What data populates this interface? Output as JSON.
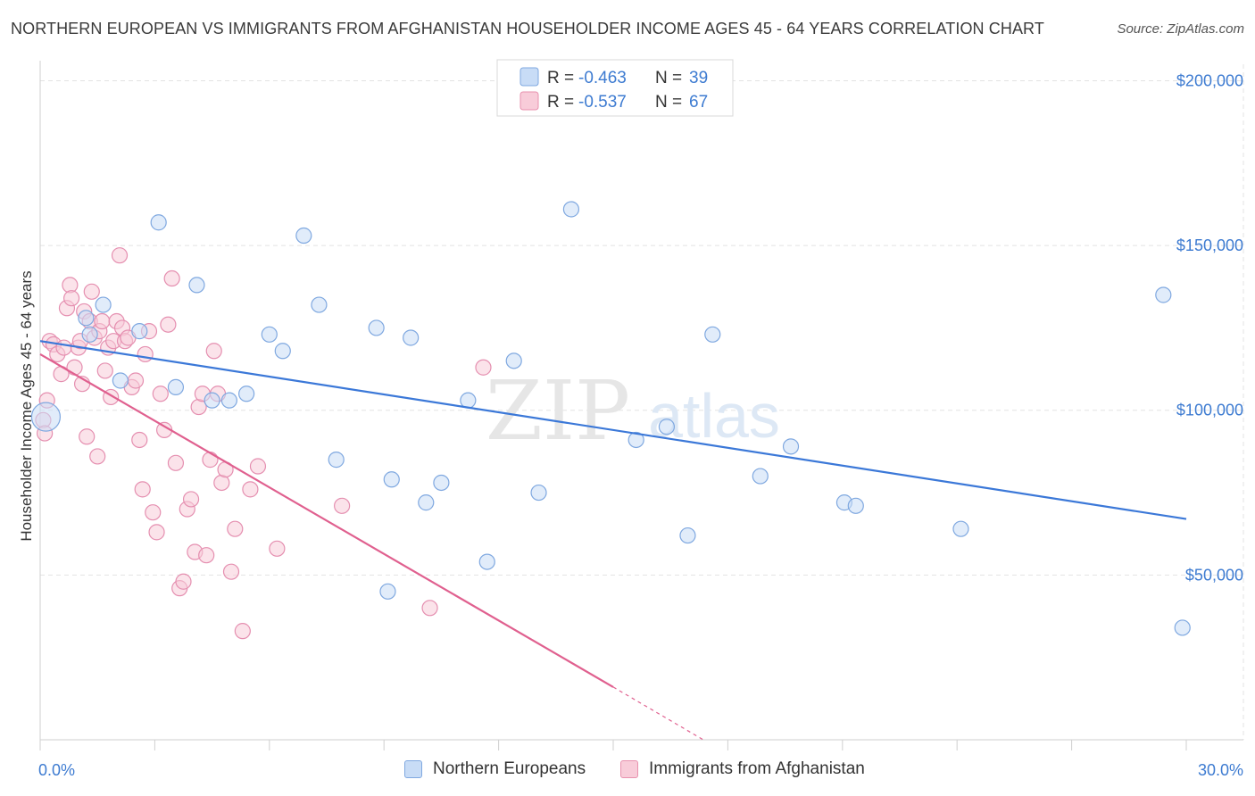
{
  "title": "NORTHERN EUROPEAN VS IMMIGRANTS FROM AFGHANISTAN HOUSEHOLDER INCOME AGES 45 - 64 YEARS CORRELATION CHART",
  "source": "Source: ZipAtlas.com",
  "watermark": {
    "zip": "ZIP",
    "atlas": "atlas"
  },
  "colors": {
    "blue": "#3b78d8",
    "blue_fill": "#c8dcf6",
    "pink": "#e0608f",
    "pink_fill": "#f8ccd9",
    "tick_text": "#3d7bd1",
    "grid": "#e3e3e3"
  },
  "legend": {
    "rows": [
      {
        "r_label": "R = ",
        "r_value": "-0.463",
        "n_label": "N = ",
        "n_value": "39"
      },
      {
        "r_label": "R = ",
        "r_value": "-0.537",
        "n_label": "N = ",
        "n_value": "67"
      }
    ]
  },
  "chart_data": {
    "type": "scatter",
    "title": "NORTHERN EUROPEAN VS IMMIGRANTS FROM AFGHANISTAN HOUSEHOLDER INCOME AGES 45 - 64 YEARS CORRELATION CHART",
    "xlabel": "",
    "ylabel": "Householder Income Ages 45 - 64 years",
    "xlim": [
      0,
      30
    ],
    "ylim": [
      0,
      205000
    ],
    "x_tick_labels": [
      "0.0%",
      "30.0%"
    ],
    "y_ticks": [
      50000,
      100000,
      150000,
      200000
    ],
    "y_tick_labels": [
      "$50,000",
      "$100,000",
      "$150,000",
      "$200,000"
    ],
    "grid": true,
    "legend_position": "top-center",
    "series": [
      {
        "name": "Northern Europeans",
        "color": "#3b78d8",
        "points": [
          [
            0.15,
            98000
          ],
          [
            1.2,
            128000
          ],
          [
            1.3,
            123000
          ],
          [
            1.65,
            132000
          ],
          [
            2.1,
            109000
          ],
          [
            2.6,
            124000
          ],
          [
            3.1,
            157000
          ],
          [
            3.55,
            107000
          ],
          [
            4.1,
            138000
          ],
          [
            4.5,
            103000
          ],
          [
            4.95,
            103000
          ],
          [
            5.4,
            105000
          ],
          [
            6.0,
            123000
          ],
          [
            6.35,
            118000
          ],
          [
            6.9,
            153000
          ],
          [
            7.3,
            132000
          ],
          [
            7.75,
            85000
          ],
          [
            8.8,
            125000
          ],
          [
            9.1,
            45000
          ],
          [
            9.2,
            79000
          ],
          [
            9.7,
            122000
          ],
          [
            10.1,
            72000
          ],
          [
            10.5,
            78000
          ],
          [
            11.2,
            103000
          ],
          [
            11.7,
            54000
          ],
          [
            12.4,
            115000
          ],
          [
            13.05,
            75000
          ],
          [
            13.9,
            161000
          ],
          [
            15.6,
            91000
          ],
          [
            16.4,
            95000
          ],
          [
            16.95,
            62000
          ],
          [
            17.6,
            123000
          ],
          [
            18.85,
            80000
          ],
          [
            19.65,
            89000
          ],
          [
            21.05,
            72000
          ],
          [
            21.35,
            71000
          ],
          [
            24.1,
            64000
          ],
          [
            29.4,
            135000
          ],
          [
            29.9,
            34000
          ]
        ],
        "trend": {
          "x": [
            0,
            30
          ],
          "y": [
            121000,
            67000
          ]
        }
      },
      {
        "name": "Immigrants from Afghanistan",
        "color": "#e0608f",
        "points": [
          [
            0.08,
            97000
          ],
          [
            0.12,
            93000
          ],
          [
            0.18,
            103000
          ],
          [
            0.25,
            121000
          ],
          [
            0.35,
            120000
          ],
          [
            0.45,
            117000
          ],
          [
            0.55,
            111000
          ],
          [
            0.62,
            119000
          ],
          [
            0.7,
            131000
          ],
          [
            0.78,
            138000
          ],
          [
            0.82,
            134000
          ],
          [
            0.9,
            113000
          ],
          [
            1.0,
            119000
          ],
          [
            1.05,
            121000
          ],
          [
            1.1,
            108000
          ],
          [
            1.15,
            130000
          ],
          [
            1.22,
            92000
          ],
          [
            1.3,
            127000
          ],
          [
            1.35,
            136000
          ],
          [
            1.42,
            122000
          ],
          [
            1.5,
            86000
          ],
          [
            1.55,
            124000
          ],
          [
            1.62,
            127000
          ],
          [
            1.7,
            112000
          ],
          [
            1.78,
            119000
          ],
          [
            1.85,
            104000
          ],
          [
            1.92,
            121000
          ],
          [
            2.0,
            127000
          ],
          [
            2.08,
            147000
          ],
          [
            2.15,
            125000
          ],
          [
            2.22,
            121000
          ],
          [
            2.3,
            122000
          ],
          [
            2.4,
            107000
          ],
          [
            2.5,
            109000
          ],
          [
            2.6,
            91000
          ],
          [
            2.68,
            76000
          ],
          [
            2.75,
            117000
          ],
          [
            2.85,
            124000
          ],
          [
            2.95,
            69000
          ],
          [
            3.05,
            63000
          ],
          [
            3.15,
            105000
          ],
          [
            3.25,
            94000
          ],
          [
            3.35,
            126000
          ],
          [
            3.45,
            140000
          ],
          [
            3.55,
            84000
          ],
          [
            3.65,
            46000
          ],
          [
            3.75,
            48000
          ],
          [
            3.85,
            70000
          ],
          [
            3.95,
            73000
          ],
          [
            4.05,
            57000
          ],
          [
            4.15,
            101000
          ],
          [
            4.25,
            105000
          ],
          [
            4.35,
            56000
          ],
          [
            4.45,
            85000
          ],
          [
            4.55,
            118000
          ],
          [
            4.65,
            105000
          ],
          [
            4.75,
            78000
          ],
          [
            4.85,
            82000
          ],
          [
            5.0,
            51000
          ],
          [
            5.1,
            64000
          ],
          [
            5.3,
            33000
          ],
          [
            5.5,
            76000
          ],
          [
            5.7,
            83000
          ],
          [
            6.2,
            58000
          ],
          [
            7.9,
            71000
          ],
          [
            10.2,
            40000
          ],
          [
            11.6,
            113000
          ]
        ],
        "trend": {
          "x": [
            0,
            15
          ],
          "y": [
            117000,
            16000
          ]
        },
        "trend_extension": {
          "x": [
            15,
            17.8
          ],
          "y": [
            16000,
            -3000
          ]
        }
      }
    ]
  }
}
